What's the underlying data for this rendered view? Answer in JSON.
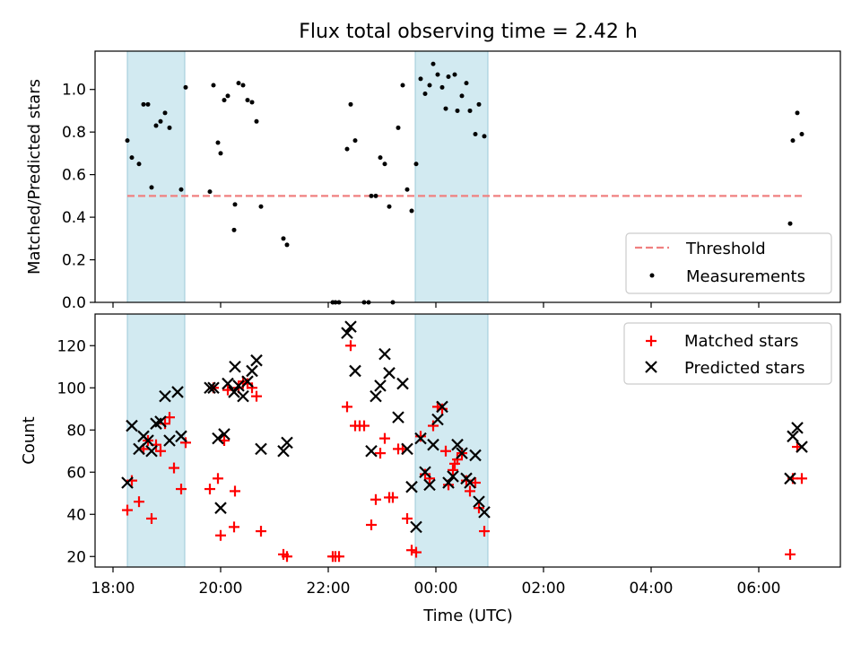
{
  "title": "Flux total observing time = 2.42 h",
  "colors": {
    "shade": "#add8e6",
    "threshold": "#f08080",
    "measurement": "#000000",
    "matched": "#ff0000",
    "predicted": "#000000"
  },
  "chart_data": [
    {
      "type": "scatter",
      "ylabel": "Matched/Predicted stars",
      "ylim": [
        0,
        1.18
      ],
      "yticks": [
        "0.0",
        "0.2",
        "0.4",
        "0.6",
        "0.8",
        "1.0"
      ],
      "grid": false,
      "legend_position": "lower right",
      "legend": [
        "Threshold",
        "Measurements"
      ],
      "threshold": {
        "name": "Threshold",
        "value": 0.5,
        "x_start": "18:16",
        "x_end": "06:48"
      },
      "shaded_intervals": [
        [
          "18:16",
          "19:20"
        ],
        [
          "23:37",
          "00:58"
        ]
      ],
      "series": [
        {
          "name": "Measurements",
          "points": [
            [
              "18:16",
              0.76
            ],
            [
              "18:21",
              0.68
            ],
            [
              "18:29",
              0.65
            ],
            [
              "18:34",
              0.93
            ],
            [
              "18:39",
              0.93
            ],
            [
              "18:43",
              0.54
            ],
            [
              "18:48",
              0.83
            ],
            [
              "18:53",
              0.85
            ],
            [
              "18:58",
              0.89
            ],
            [
              "19:03",
              0.82
            ],
            [
              "19:16",
              0.53
            ],
            [
              "19:21",
              1.01
            ],
            [
              "19:48",
              0.52
            ],
            [
              "19:52",
              1.02
            ],
            [
              "19:57",
              0.75
            ],
            [
              "20:00",
              0.7
            ],
            [
              "20:04",
              0.95
            ],
            [
              "20:08",
              0.97
            ],
            [
              "20:15",
              0.34
            ],
            [
              "20:16",
              0.46
            ],
            [
              "20:20",
              1.03
            ],
            [
              "20:25",
              1.02
            ],
            [
              "20:30",
              0.95
            ],
            [
              "20:35",
              0.94
            ],
            [
              "20:40",
              0.85
            ],
            [
              "20:45",
              0.45
            ],
            [
              "21:10",
              0.3
            ],
            [
              "21:14",
              0.27
            ],
            [
              "22:05",
              0.0
            ],
            [
              "22:08",
              0.0
            ],
            [
              "22:12",
              0.0
            ],
            [
              "22:21",
              0.72
            ],
            [
              "22:25",
              0.93
            ],
            [
              "22:30",
              0.76
            ],
            [
              "22:40",
              0.0
            ],
            [
              "22:45",
              0.0
            ],
            [
              "22:48",
              0.5
            ],
            [
              "22:53",
              0.5
            ],
            [
              "22:58",
              0.68
            ],
            [
              "23:03",
              0.65
            ],
            [
              "23:08",
              0.45
            ],
            [
              "23:12",
              0.0
            ],
            [
              "23:18",
              0.82
            ],
            [
              "23:23",
              1.02
            ],
            [
              "23:28",
              0.53
            ],
            [
              "23:33",
              0.43
            ],
            [
              "23:38",
              0.65
            ],
            [
              "23:43",
              1.05
            ],
            [
              "23:48",
              0.98
            ],
            [
              "23:53",
              1.02
            ],
            [
              "23:57",
              1.12
            ],
            [
              "00:02",
              1.07
            ],
            [
              "00:07",
              1.01
            ],
            [
              "00:11",
              0.91
            ],
            [
              "00:14",
              1.06
            ],
            [
              "00:21",
              1.07
            ],
            [
              "00:24",
              0.9
            ],
            [
              "00:29",
              0.97
            ],
            [
              "00:34",
              1.03
            ],
            [
              "00:38",
              0.9
            ],
            [
              "00:44",
              0.79
            ],
            [
              "00:48",
              0.93
            ],
            [
              "00:54",
              0.78
            ],
            [
              "06:35",
              0.37
            ],
            [
              "06:38",
              0.76
            ],
            [
              "06:43",
              0.89
            ],
            [
              "06:48",
              0.79
            ]
          ]
        }
      ]
    },
    {
      "type": "scatter",
      "xlabel": "Time (UTC)",
      "ylabel": "Count",
      "ylim": [
        15,
        135
      ],
      "yticks": [
        "20",
        "40",
        "60",
        "80",
        "100",
        "120"
      ],
      "xticks": [
        "18:00",
        "20:00",
        "22:00",
        "00:00",
        "02:00",
        "04:00",
        "06:00"
      ],
      "grid": false,
      "legend_position": "upper right",
      "legend": [
        "Matched stars",
        "Predicted stars"
      ],
      "shaded_intervals": [
        [
          "18:16",
          "19:20"
        ],
        [
          "23:37",
          "00:58"
        ]
      ],
      "series": [
        {
          "name": "Matched stars",
          "marker": "+",
          "points": [
            [
              "18:16",
              42
            ],
            [
              "18:21",
              56
            ],
            [
              "18:29",
              46
            ],
            [
              "18:34",
              71
            ],
            [
              "18:39",
              75
            ],
            [
              "18:43",
              38
            ],
            [
              "18:48",
              73
            ],
            [
              "18:53",
              70
            ],
            [
              "18:58",
              83
            ],
            [
              "19:03",
              86
            ],
            [
              "19:08",
              62
            ],
            [
              "19:16",
              52
            ],
            [
              "19:21",
              74
            ],
            [
              "19:48",
              52
            ],
            [
              "19:52",
              100
            ],
            [
              "19:57",
              57
            ],
            [
              "20:00",
              30
            ],
            [
              "20:04",
              75
            ],
            [
              "20:08",
              99
            ],
            [
              "20:15",
              34
            ],
            [
              "20:16",
              51
            ],
            [
              "20:20",
              100
            ],
            [
              "20:25",
              103
            ],
            [
              "20:30",
              102
            ],
            [
              "20:35",
              100
            ],
            [
              "20:40",
              96
            ],
            [
              "20:45",
              32
            ],
            [
              "21:10",
              21
            ],
            [
              "21:14",
              20
            ],
            [
              "22:05",
              20
            ],
            [
              "22:08",
              20
            ],
            [
              "22:12",
              20
            ],
            [
              "22:21",
              91
            ],
            [
              "22:25",
              120
            ],
            [
              "22:30",
              82
            ],
            [
              "22:35",
              82
            ],
            [
              "22:40",
              82
            ],
            [
              "22:48",
              35
            ],
            [
              "22:53",
              47
            ],
            [
              "22:58",
              69
            ],
            [
              "23:03",
              76
            ],
            [
              "23:08",
              48
            ],
            [
              "23:12",
              48
            ],
            [
              "23:18",
              71
            ],
            [
              "23:23",
              71
            ],
            [
              "23:28",
              38
            ],
            [
              "23:33",
              23
            ],
            [
              "23:38",
              22
            ],
            [
              "23:43",
              77
            ],
            [
              "23:48",
              59
            ],
            [
              "23:53",
              57
            ],
            [
              "23:57",
              82
            ],
            [
              "00:02",
              91
            ],
            [
              "00:07",
              90
            ],
            [
              "00:11",
              70
            ],
            [
              "00:14",
              54
            ],
            [
              "00:19",
              61
            ],
            [
              "00:21",
              64
            ],
            [
              "00:24",
              66
            ],
            [
              "00:29",
              69
            ],
            [
              "00:34",
              56
            ],
            [
              "00:38",
              51
            ],
            [
              "00:44",
              55
            ],
            [
              "00:48",
              43
            ],
            [
              "00:54",
              32
            ],
            [
              "06:35",
              21
            ],
            [
              "06:38",
              57
            ],
            [
              "06:43",
              72
            ],
            [
              "06:48",
              57
            ]
          ]
        },
        {
          "name": "Predicted stars",
          "marker": "x",
          "points": [
            [
              "18:16",
              55
            ],
            [
              "18:21",
              82
            ],
            [
              "18:29",
              71
            ],
            [
              "18:34",
              77
            ],
            [
              "18:39",
              75
            ],
            [
              "18:43",
              70
            ],
            [
              "18:48",
              83
            ],
            [
              "18:53",
              84
            ],
            [
              "18:58",
              96
            ],
            [
              "19:03",
              75
            ],
            [
              "19:12",
              98
            ],
            [
              "19:16",
              77
            ],
            [
              "19:48",
              100
            ],
            [
              "19:52",
              100
            ],
            [
              "19:57",
              76
            ],
            [
              "20:00",
              43
            ],
            [
              "20:04",
              78
            ],
            [
              "20:08",
              102
            ],
            [
              "20:15",
              98
            ],
            [
              "20:16",
              110
            ],
            [
              "20:20",
              101
            ],
            [
              "20:25",
              96
            ],
            [
              "20:30",
              103
            ],
            [
              "20:35",
              108
            ],
            [
              "20:40",
              113
            ],
            [
              "20:45",
              71
            ],
            [
              "21:10",
              70
            ],
            [
              "21:14",
              74
            ],
            [
              "22:21",
              126
            ],
            [
              "22:25",
              129
            ],
            [
              "22:30",
              108
            ],
            [
              "22:48",
              70
            ],
            [
              "22:53",
              96
            ],
            [
              "22:58",
              101
            ],
            [
              "23:03",
              116
            ],
            [
              "23:08",
              107
            ],
            [
              "23:18",
              86
            ],
            [
              "23:23",
              102
            ],
            [
              "23:28",
              71
            ],
            [
              "23:33",
              53
            ],
            [
              "23:38",
              34
            ],
            [
              "23:43",
              76
            ],
            [
              "23:48",
              60
            ],
            [
              "23:53",
              54
            ],
            [
              "23:57",
              73
            ],
            [
              "00:02",
              85
            ],
            [
              "00:07",
              91
            ],
            [
              "00:14",
              55
            ],
            [
              "00:19",
              58
            ],
            [
              "00:24",
              73
            ],
            [
              "00:29",
              69
            ],
            [
              "00:34",
              57
            ],
            [
              "00:38",
              55
            ],
            [
              "00:44",
              68
            ],
            [
              "00:48",
              46
            ],
            [
              "00:54",
              41
            ],
            [
              "06:35",
              57
            ],
            [
              "06:38",
              77
            ],
            [
              "06:43",
              81
            ],
            [
              "06:48",
              72
            ]
          ]
        }
      ]
    }
  ]
}
